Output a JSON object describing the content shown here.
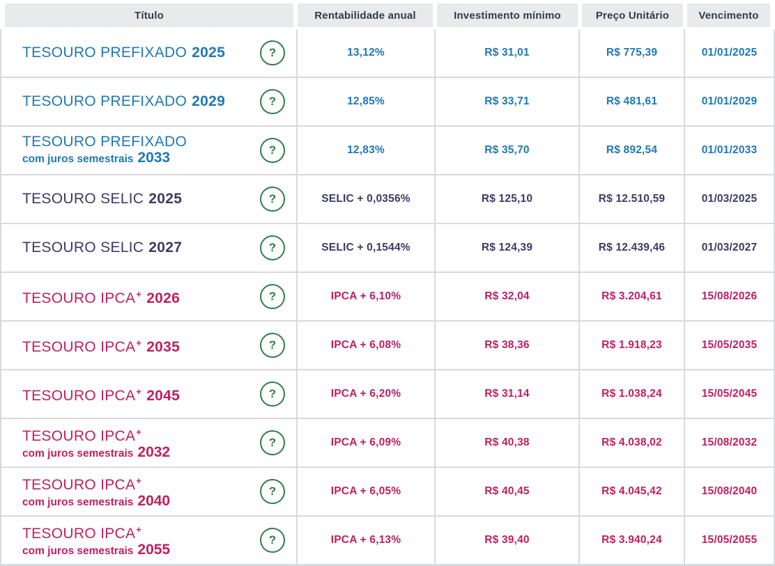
{
  "table": {
    "columns": [
      "Título",
      "Rentabilidade anual",
      "Investimento mínimo",
      "Preço Unitário",
      "Vencimento"
    ],
    "help_label": "?",
    "colors": {
      "prefixado": "#1f78b4",
      "selic": "#3d3a64",
      "ipca": "#c01f5f",
      "help_green": "#2f7d4a",
      "header_bg": "#e9eaec",
      "grid_line": "#d8dadc"
    },
    "rows": [
      {
        "type": "prefixado",
        "name": "TESOURO PREFIXADO",
        "sup": "",
        "subtitle": "",
        "year": "2025",
        "rate": "13,12%",
        "min_investment": "R$ 31,01",
        "unit_price": "R$ 775,39",
        "maturity": "01/01/2025"
      },
      {
        "type": "prefixado",
        "name": "TESOURO PREFIXADO",
        "sup": "",
        "subtitle": "",
        "year": "2029",
        "rate": "12,85%",
        "min_investment": "R$ 33,71",
        "unit_price": "R$ 481,61",
        "maturity": "01/01/2029"
      },
      {
        "type": "prefixado",
        "name": "TESOURO PREFIXADO",
        "sup": "",
        "subtitle": "com juros semestrais",
        "year": "2033",
        "rate": "12,83%",
        "min_investment": "R$ 35,70",
        "unit_price": "R$ 892,54",
        "maturity": "01/01/2033"
      },
      {
        "type": "selic",
        "name": "TESOURO SELIC",
        "sup": "",
        "subtitle": "",
        "year": "2025",
        "rate": "SELIC + 0,0356%",
        "min_investment": "R$ 125,10",
        "unit_price": "R$ 12.510,59",
        "maturity": "01/03/2025"
      },
      {
        "type": "selic",
        "name": "TESOURO SELIC",
        "sup": "",
        "subtitle": "",
        "year": "2027",
        "rate": "SELIC + 0,1544%",
        "min_investment": "R$ 124,39",
        "unit_price": "R$ 12.439,46",
        "maturity": "01/03/2027"
      },
      {
        "type": "ipca",
        "name": "TESOURO IPCA",
        "sup": "+",
        "subtitle": "",
        "year": "2026",
        "rate": "IPCA + 6,10%",
        "min_investment": "R$ 32,04",
        "unit_price": "R$ 3.204,61",
        "maturity": "15/08/2026"
      },
      {
        "type": "ipca",
        "name": "TESOURO IPCA",
        "sup": "+",
        "subtitle": "",
        "year": "2035",
        "rate": "IPCA + 6,08%",
        "min_investment": "R$ 38,36",
        "unit_price": "R$ 1.918,23",
        "maturity": "15/05/2035"
      },
      {
        "type": "ipca",
        "name": "TESOURO IPCA",
        "sup": "+",
        "subtitle": "",
        "year": "2045",
        "rate": "IPCA + 6,20%",
        "min_investment": "R$ 31,14",
        "unit_price": "R$ 1.038,24",
        "maturity": "15/05/2045"
      },
      {
        "type": "ipca",
        "name": "TESOURO IPCA",
        "sup": "+",
        "subtitle": "com juros semestrais",
        "year": "2032",
        "rate": "IPCA + 6,09%",
        "min_investment": "R$ 40,38",
        "unit_price": "R$ 4.038,02",
        "maturity": "15/08/2032"
      },
      {
        "type": "ipca",
        "name": "TESOURO IPCA",
        "sup": "+",
        "subtitle": "com juros semestrais",
        "year": "2040",
        "rate": "IPCA + 6,05%",
        "min_investment": "R$ 40,45",
        "unit_price": "R$ 4.045,42",
        "maturity": "15/08/2040"
      },
      {
        "type": "ipca",
        "name": "TESOURO IPCA",
        "sup": "+",
        "subtitle": "com juros semestrais",
        "year": "2055",
        "rate": "IPCA + 6,13%",
        "min_investment": "R$ 39,40",
        "unit_price": "R$ 3.940,24",
        "maturity": "15/05/2055"
      }
    ]
  }
}
